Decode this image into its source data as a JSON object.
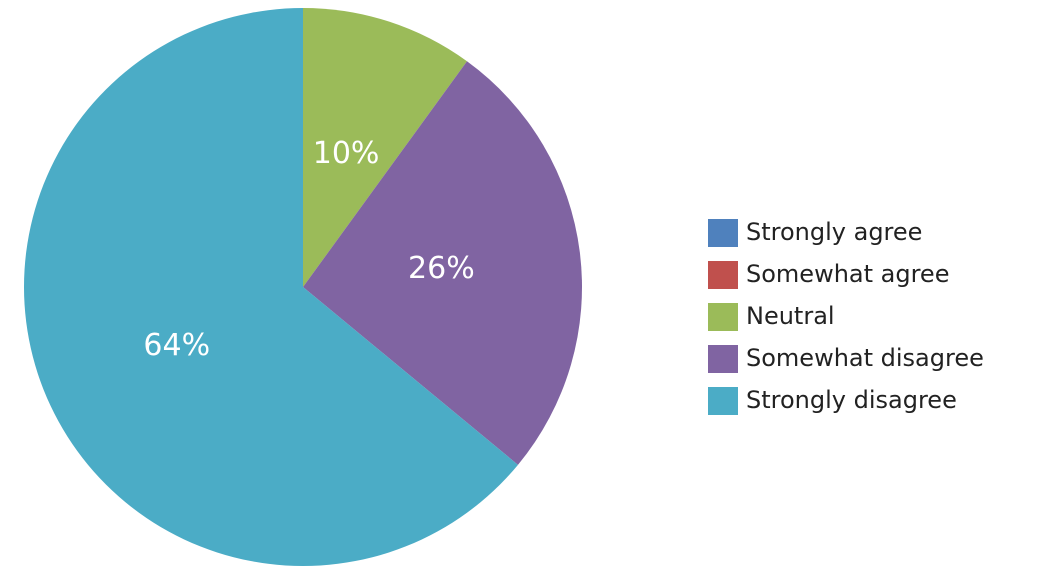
{
  "chart_data": {
    "type": "pie",
    "categories": [
      "Strongly agree",
      "Somewhat agree",
      "Neutral",
      "Somewhat disagree",
      "Strongly disagree"
    ],
    "values": [
      0,
      0,
      10,
      26,
      64
    ],
    "value_labels": [
      null,
      null,
      "10%",
      "26%",
      "64%"
    ],
    "colors": [
      "#4f81bd",
      "#c0504d",
      "#9bbb59",
      "#8064a2",
      "#4bacc6"
    ],
    "legend": "right"
  }
}
